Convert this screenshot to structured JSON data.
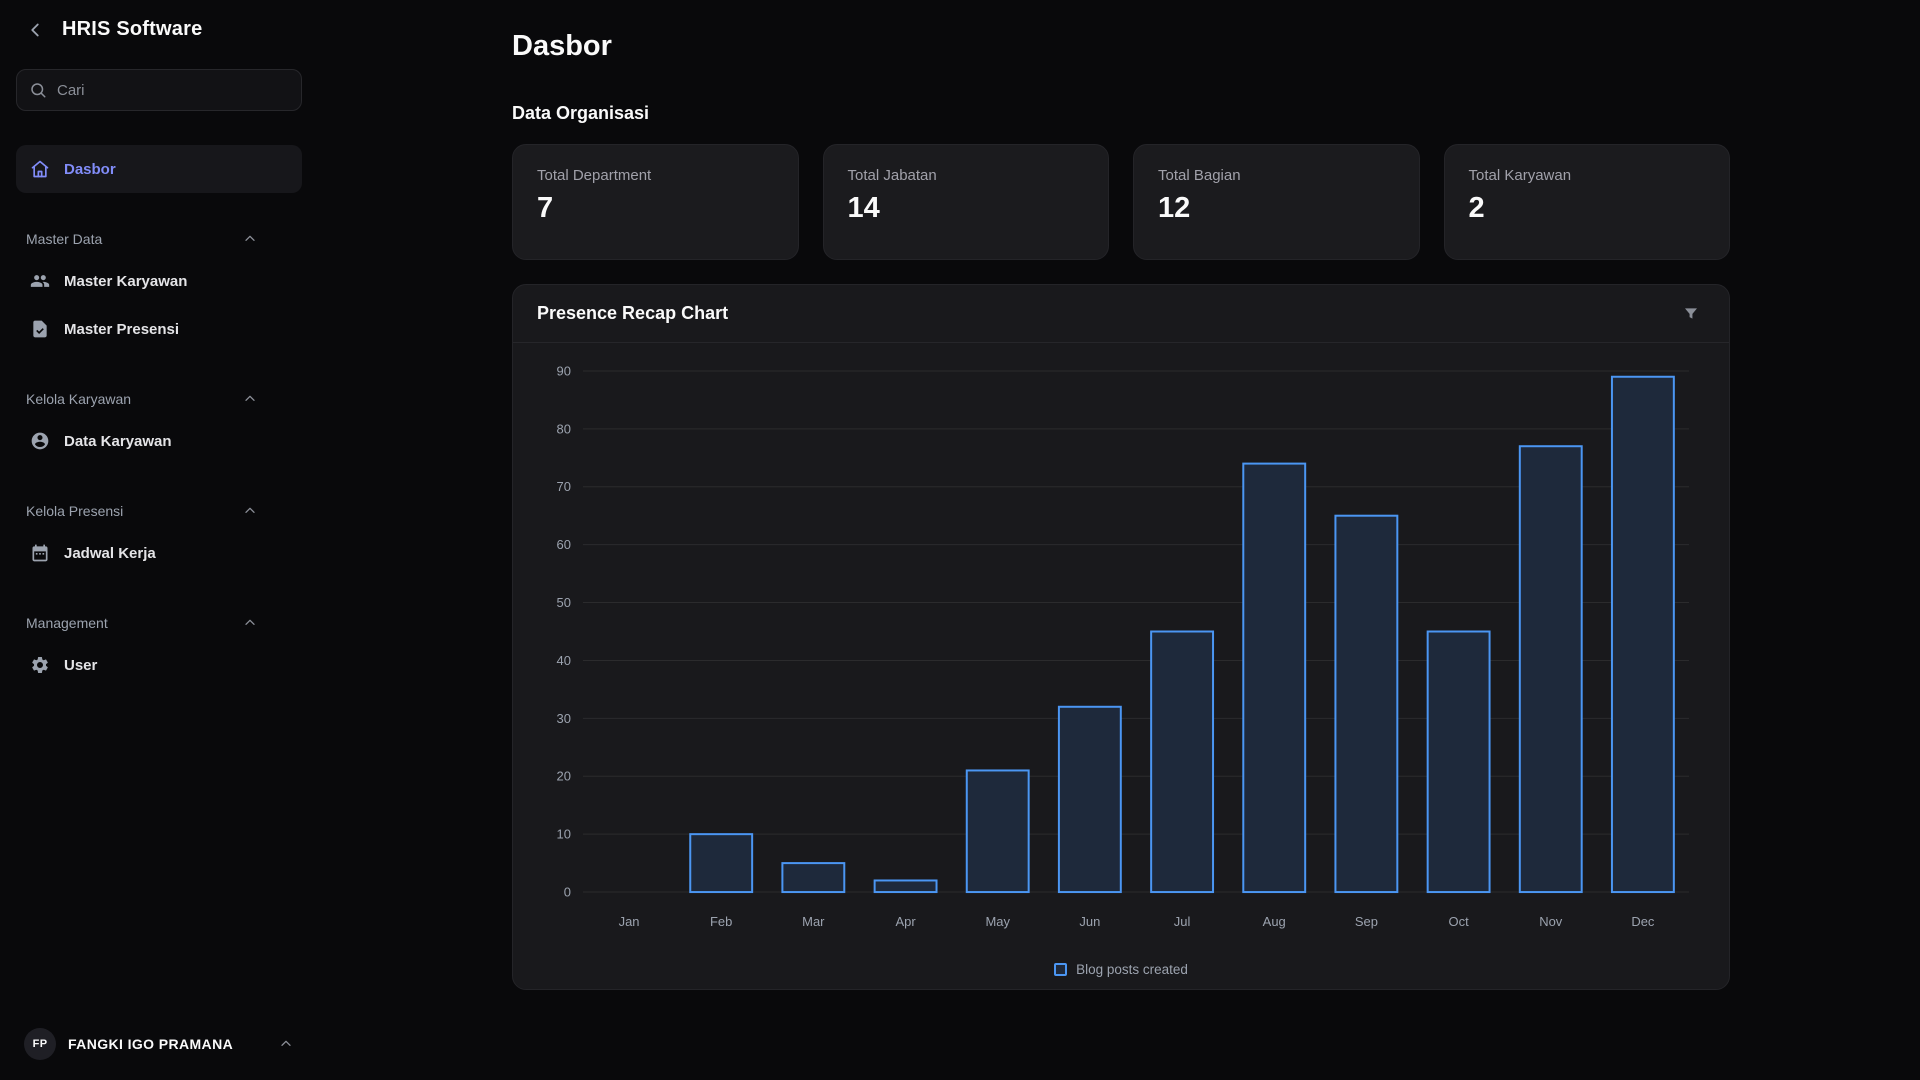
{
  "app": {
    "title": "HRIS Software"
  },
  "sidebar": {
    "search_placeholder": "Cari",
    "dashboard_item": {
      "label": "Dasbor",
      "icon": "home-icon"
    },
    "sections": [
      {
        "label": "Master Data",
        "items": [
          {
            "label": "Master Karyawan",
            "icon": "users-icon"
          },
          {
            "label": "Master Presensi",
            "icon": "clipboard-check-icon"
          }
        ]
      },
      {
        "label": "Kelola Karyawan",
        "items": [
          {
            "label": "Data Karyawan",
            "icon": "user-circle-icon"
          }
        ]
      },
      {
        "label": "Kelola Presensi",
        "items": [
          {
            "label": "Jadwal Kerja",
            "icon": "calendar-icon"
          }
        ]
      },
      {
        "label": "Management",
        "items": [
          {
            "label": "User",
            "icon": "gear-icon"
          }
        ]
      }
    ],
    "user": {
      "initials": "FP",
      "name": "FANGKI IGO PRAMANA"
    }
  },
  "main": {
    "page_title": "Dasbor",
    "section_title": "Data Organisasi",
    "stat_cards": [
      {
        "label": "Total Department",
        "value": "7"
      },
      {
        "label": "Total Jabatan",
        "value": "14"
      },
      {
        "label": "Total Bagian",
        "value": "12"
      },
      {
        "label": "Total Karyawan",
        "value": "2"
      }
    ],
    "chart_card": {
      "title": "Presence Recap Chart"
    }
  },
  "chart_data": {
    "type": "bar",
    "title": "Presence Recap Chart",
    "categories": [
      "Jan",
      "Feb",
      "Mar",
      "Apr",
      "May",
      "Jun",
      "Jul",
      "Aug",
      "Sep",
      "Oct",
      "Nov",
      "Dec"
    ],
    "values": [
      0,
      10,
      5,
      2,
      21,
      32,
      45,
      74,
      65,
      45,
      77,
      89
    ],
    "series_name": "Blog posts created",
    "legend": [
      "Blog posts created"
    ],
    "legend_position": "bottom",
    "xlabel": "",
    "ylabel": "",
    "ylim": [
      0,
      90
    ],
    "yticks": [
      0,
      10,
      20,
      30,
      40,
      50,
      60,
      70,
      80,
      90
    ],
    "grid": true,
    "colors": {
      "bar_stroke": "#4b96f3",
      "bar_fill": "#1e293b"
    }
  },
  "colors": {
    "accent": "#818cf8",
    "background": "#09090b",
    "card": "#1b1b1e",
    "muted_text": "#9ca3af"
  }
}
